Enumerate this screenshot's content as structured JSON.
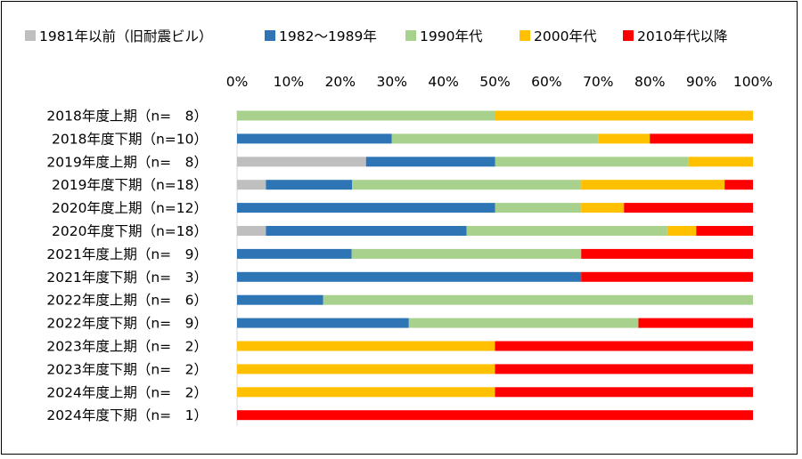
{
  "chart_data": {
    "type": "bar",
    "orientation": "horizontal",
    "stacked": "percent",
    "title": "",
    "xlabel": "",
    "ylabel": "",
    "xlim": [
      0,
      100
    ],
    "x_ticks": [
      "0%",
      "10%",
      "20%",
      "30%",
      "40%",
      "50%",
      "60%",
      "70%",
      "80%",
      "90%",
      "100%"
    ],
    "grid": false,
    "legend_position": "top",
    "categories": [
      "2018年度上期（n=　8）",
      "2018年度下期（n=10）",
      "2019年度上期（n=　8）",
      "2019年度下期（n=18）",
      "2020年度上期（n=12）",
      "2020年度下期（n=18）",
      "2021年度上期（n=　9）",
      "2021年度下期（n=　3）",
      "2022年度上期（n=　6）",
      "2022年度下期（n=　9）",
      "2023年度上期（n=　2）",
      "2023年度下期（n=　2）",
      "2024年度上期（n=　2）",
      "2024年度下期（n=　1）"
    ],
    "series": [
      {
        "name": "1981年以前（旧耐震ビル）",
        "color": "#bfbfbf",
        "values": [
          0,
          0,
          25,
          5.6,
          0,
          5.6,
          0,
          0,
          0,
          0,
          0,
          0,
          0,
          0
        ]
      },
      {
        "name": "1982～1989年",
        "color": "#2e75b6",
        "values": [
          0,
          30,
          25,
          16.7,
          50,
          38.9,
          22.2,
          66.7,
          16.7,
          33.3,
          0,
          0,
          0,
          0
        ]
      },
      {
        "name": "1990年代",
        "color": "#a9d18e",
        "values": [
          50,
          40,
          37.5,
          44.4,
          16.7,
          38.9,
          44.5,
          0,
          83.3,
          44.5,
          0,
          0,
          0,
          0
        ]
      },
      {
        "name": "2000年代",
        "color": "#ffc000",
        "values": [
          50,
          10,
          12.5,
          27.8,
          8.3,
          5.6,
          0,
          0,
          0,
          0,
          50,
          50,
          50,
          0
        ]
      },
      {
        "name": "2010年代以降",
        "color": "#ff0000",
        "values": [
          0,
          20,
          0,
          5.5,
          25,
          11,
          33.3,
          33.3,
          0,
          22.2,
          50,
          50,
          50,
          100
        ]
      }
    ]
  }
}
